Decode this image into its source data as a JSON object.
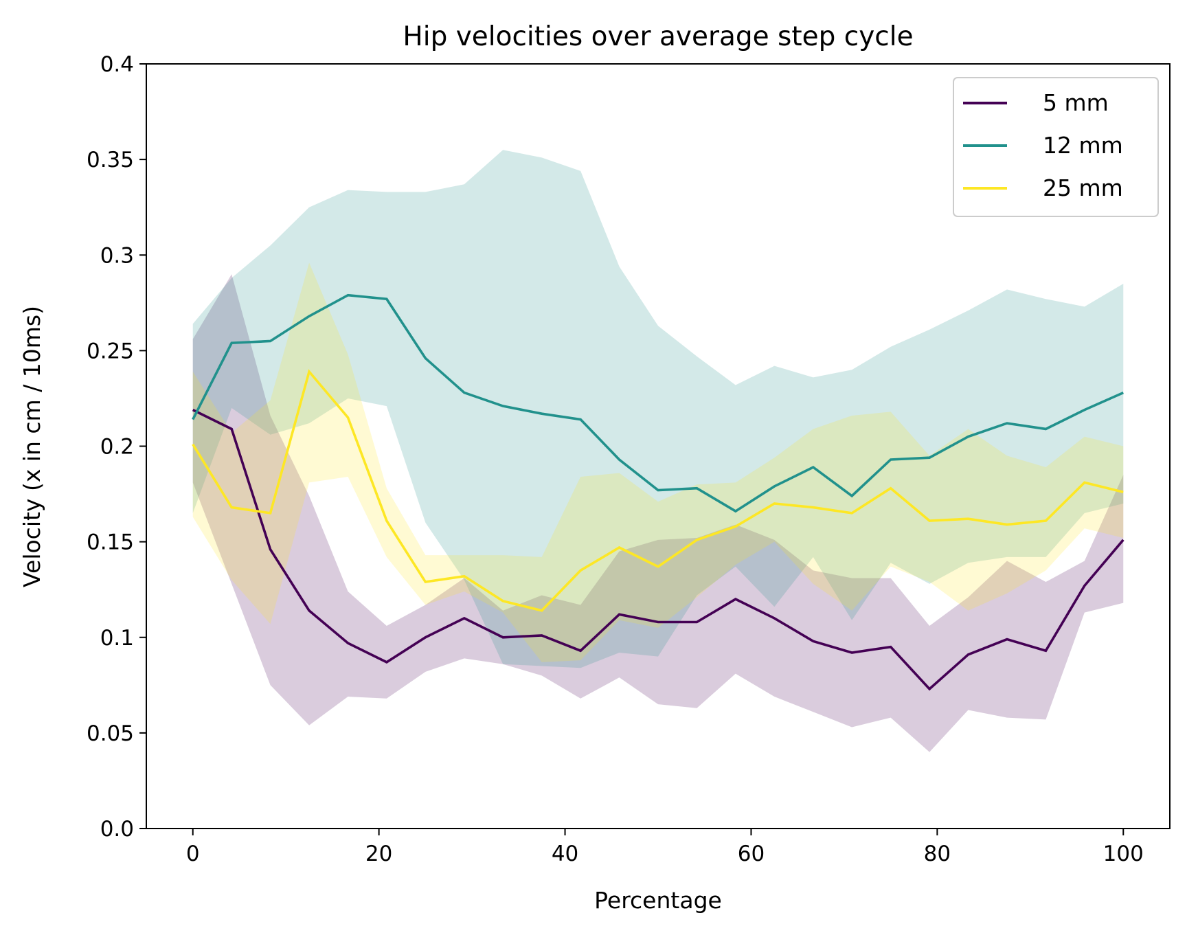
{
  "chart_data": {
    "type": "line",
    "title": "Hip velocities over average step cycle",
    "xlabel": "Percentage",
    "ylabel": "Velocity (x in cm / 10ms)",
    "xlim": [
      -5,
      105
    ],
    "ylim": [
      0,
      0.4
    ],
    "xticks": [
      0,
      20,
      40,
      60,
      80,
      100
    ],
    "xtick_labels": [
      "0",
      "20",
      "40",
      "60",
      "80",
      "100"
    ],
    "yticks": [
      0,
      0.05,
      0.1,
      0.15,
      0.2,
      0.25,
      0.3,
      0.35,
      0.4
    ],
    "ytick_labels": [
      "0.0",
      "0.05",
      "0.1",
      "0.15",
      "0.2",
      "0.25",
      "0.3",
      "0.35",
      "0.4"
    ],
    "grid": false,
    "legend_position": "top-right",
    "x": [
      0,
      4.17,
      8.33,
      12.5,
      16.67,
      20.83,
      25,
      29.17,
      33.33,
      37.5,
      41.67,
      45.83,
      50,
      54.17,
      58.33,
      62.5,
      66.67,
      70.83,
      75,
      79.17,
      83.33,
      87.5,
      91.67,
      95.83,
      100
    ],
    "series": [
      {
        "name": "5 mm",
        "color": "#440154",
        "band_opacity": 0.2,
        "values": [
          0.219,
          0.209,
          0.146,
          0.114,
          0.097,
          0.087,
          0.1,
          0.11,
          0.1,
          0.101,
          0.093,
          0.112,
          0.108,
          0.108,
          0.12,
          0.11,
          0.098,
          0.092,
          0.095,
          0.073,
          0.091,
          0.099,
          0.093,
          0.127,
          0.151
        ],
        "lower": [
          0.181,
          0.128,
          0.075,
          0.054,
          0.069,
          0.068,
          0.082,
          0.089,
          0.086,
          0.08,
          0.068,
          0.079,
          0.065,
          0.063,
          0.081,
          0.069,
          0.061,
          0.053,
          0.058,
          0.04,
          0.062,
          0.058,
          0.057,
          0.113,
          0.118
        ],
        "upper": [
          0.256,
          0.29,
          0.216,
          0.174,
          0.124,
          0.106,
          0.117,
          0.131,
          0.114,
          0.122,
          0.117,
          0.145,
          0.151,
          0.152,
          0.159,
          0.151,
          0.135,
          0.131,
          0.131,
          0.106,
          0.121,
          0.14,
          0.129,
          0.14,
          0.185
        ]
      },
      {
        "name": "12 mm",
        "color": "#21918c",
        "band_opacity": 0.2,
        "values": [
          0.214,
          0.254,
          0.255,
          0.268,
          0.279,
          0.277,
          0.246,
          0.228,
          0.221,
          0.217,
          0.214,
          0.193,
          0.177,
          0.178,
          0.166,
          0.179,
          0.189,
          0.174,
          0.193,
          0.194,
          0.205,
          0.212,
          0.209,
          0.219,
          0.228
        ],
        "lower": [
          0.165,
          0.22,
          0.206,
          0.212,
          0.225,
          0.221,
          0.16,
          0.13,
          0.086,
          0.085,
          0.084,
          0.092,
          0.09,
          0.122,
          0.137,
          0.116,
          0.142,
          0.109,
          0.139,
          0.128,
          0.139,
          0.142,
          0.142,
          0.165,
          0.17
        ],
        "upper": [
          0.264,
          0.288,
          0.305,
          0.325,
          0.334,
          0.333,
          0.333,
          0.337,
          0.355,
          0.351,
          0.344,
          0.294,
          0.263,
          0.247,
          0.232,
          0.242,
          0.236,
          0.24,
          0.252,
          0.261,
          0.271,
          0.282,
          0.277,
          0.273,
          0.285
        ]
      },
      {
        "name": "25 mm",
        "color": "#fde725",
        "band_opacity": 0.2,
        "values": [
          0.201,
          0.168,
          0.165,
          0.239,
          0.215,
          0.161,
          0.129,
          0.132,
          0.119,
          0.114,
          0.135,
          0.147,
          0.137,
          0.151,
          0.158,
          0.17,
          0.168,
          0.165,
          0.178,
          0.161,
          0.162,
          0.159,
          0.161,
          0.181,
          0.176
        ]
      }
    ]
  },
  "extra_band_25mm": {
    "lower": [
      0.163,
      0.13,
      0.107,
      0.181,
      0.184,
      0.142,
      0.117,
      0.124,
      0.113,
      0.087,
      0.088,
      0.109,
      0.105,
      0.121,
      0.138,
      0.15,
      0.128,
      0.114,
      0.137,
      0.129,
      0.114,
      0.123,
      0.135,
      0.157,
      0.152
    ],
    "upper": [
      0.239,
      0.207,
      0.224,
      0.296,
      0.248,
      0.178,
      0.143,
      0.143,
      0.143,
      0.142,
      0.184,
      0.186,
      0.171,
      0.18,
      0.181,
      0.194,
      0.209,
      0.216,
      0.218,
      0.195,
      0.209,
      0.195,
      0.189,
      0.205,
      0.2
    ]
  }
}
